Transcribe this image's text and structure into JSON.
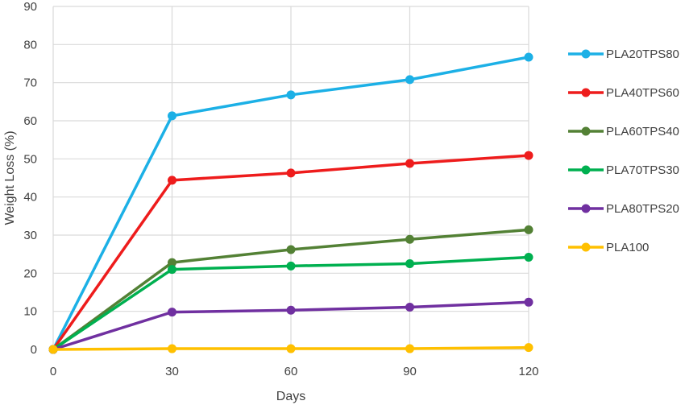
{
  "chart_data": {
    "type": "line",
    "xlabel": "Days",
    "ylabel": "Weight Loss (%)",
    "xlim": [
      0,
      120
    ],
    "ylim": [
      0,
      90
    ],
    "x_ticks": [
      "0",
      "30",
      "60",
      "90",
      "120"
    ],
    "y_ticks": [
      "0",
      "10",
      "20",
      "30",
      "40",
      "50",
      "60",
      "70",
      "80",
      "90"
    ],
    "grid": true,
    "legend_position": "right",
    "x": [
      0,
      30,
      60,
      90,
      120
    ],
    "series": [
      {
        "name": "PLA20TPS80",
        "color": "#1CB0E6",
        "values": [
          0,
          61.3,
          66.8,
          70.8,
          76.7
        ]
      },
      {
        "name": "PLA40TPS60",
        "color": "#EE1C1C",
        "values": [
          0,
          44.4,
          46.3,
          48.8,
          50.9
        ]
      },
      {
        "name": "PLA60TPS40",
        "color": "#538135",
        "values": [
          0,
          22.8,
          26.2,
          28.9,
          31.4
        ]
      },
      {
        "name": "PLA70TPS30",
        "color": "#00B050",
        "values": [
          0,
          21.0,
          21.9,
          22.5,
          24.2
        ]
      },
      {
        "name": "PLA80TPS20",
        "color": "#7030A0",
        "values": [
          0,
          9.8,
          10.3,
          11.1,
          12.4
        ]
      },
      {
        "name": "PLA100",
        "color": "#FFC000",
        "values": [
          0,
          0.2,
          0.2,
          0.2,
          0.5
        ]
      }
    ]
  }
}
